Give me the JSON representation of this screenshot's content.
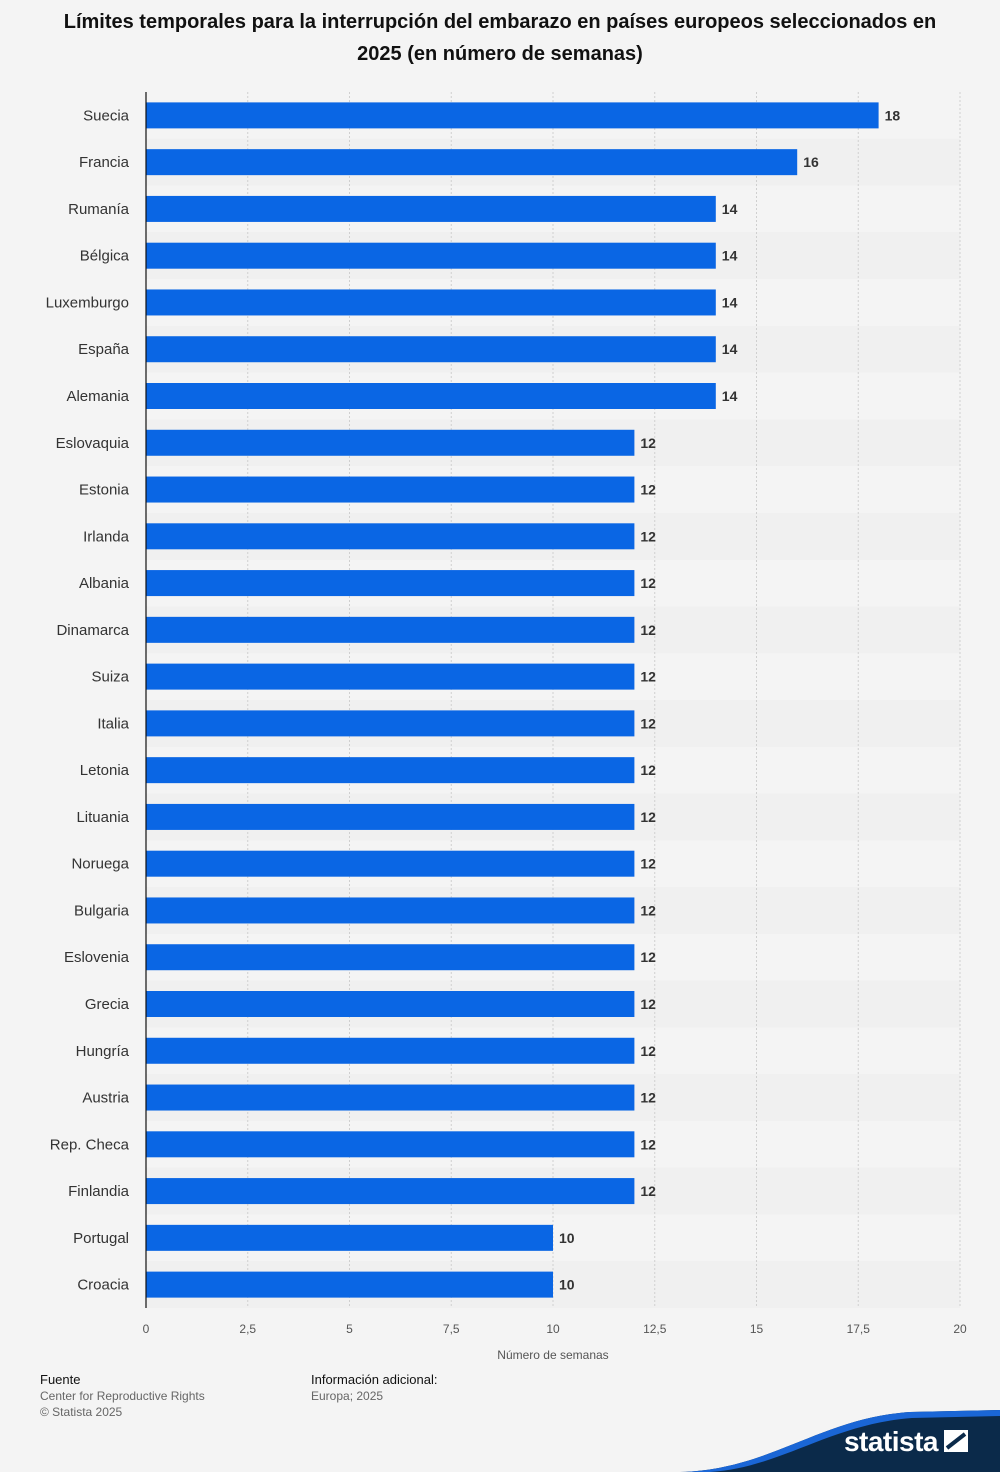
{
  "chart_data": {
    "type": "bar",
    "orientation": "horizontal",
    "title": "Límites temporales para la interrupción del embarazo en países europeos seleccionados en 2025 (en número de semanas)",
    "xlabel": "Número de semanas",
    "xlim": [
      0,
      20
    ],
    "xticks": [
      "0",
      "2,5",
      "5",
      "7,5",
      "10",
      "12,5",
      "15",
      "17,5",
      "20"
    ],
    "xtick_values": [
      0,
      2.5,
      5,
      7.5,
      10,
      12.5,
      15,
      17.5,
      20
    ],
    "grid": true,
    "bar_color": "#0a66e4",
    "categories": [
      "Suecia",
      "Francia",
      "Rumanía",
      "Bélgica",
      "Luxemburgo",
      "España",
      "Alemania",
      "Eslovaquia",
      "Estonia",
      "Irlanda",
      "Albania",
      "Dinamarca",
      "Suiza",
      "Italia",
      "Letonia",
      "Lituania",
      "Noruega",
      "Bulgaria",
      "Eslovenia",
      "Grecia",
      "Hungría",
      "Austria",
      "Rep. Checa",
      "Finlandia",
      "Portugal",
      "Croacia"
    ],
    "values": [
      18,
      16,
      14,
      14,
      14,
      14,
      14,
      12,
      12,
      12,
      12,
      12,
      12,
      12,
      12,
      12,
      12,
      12,
      12,
      12,
      12,
      12,
      12,
      12,
      10,
      10
    ]
  },
  "footer": {
    "source_heading": "Fuente",
    "source_text": "Center for Reproductive Rights",
    "copyright": "© Statista 2025",
    "info_heading": "Información adicional:",
    "info_text": "Europa; 2025"
  },
  "brand": {
    "name": "statista",
    "color": "#0b2a4a",
    "accent": "#1a66d6"
  }
}
